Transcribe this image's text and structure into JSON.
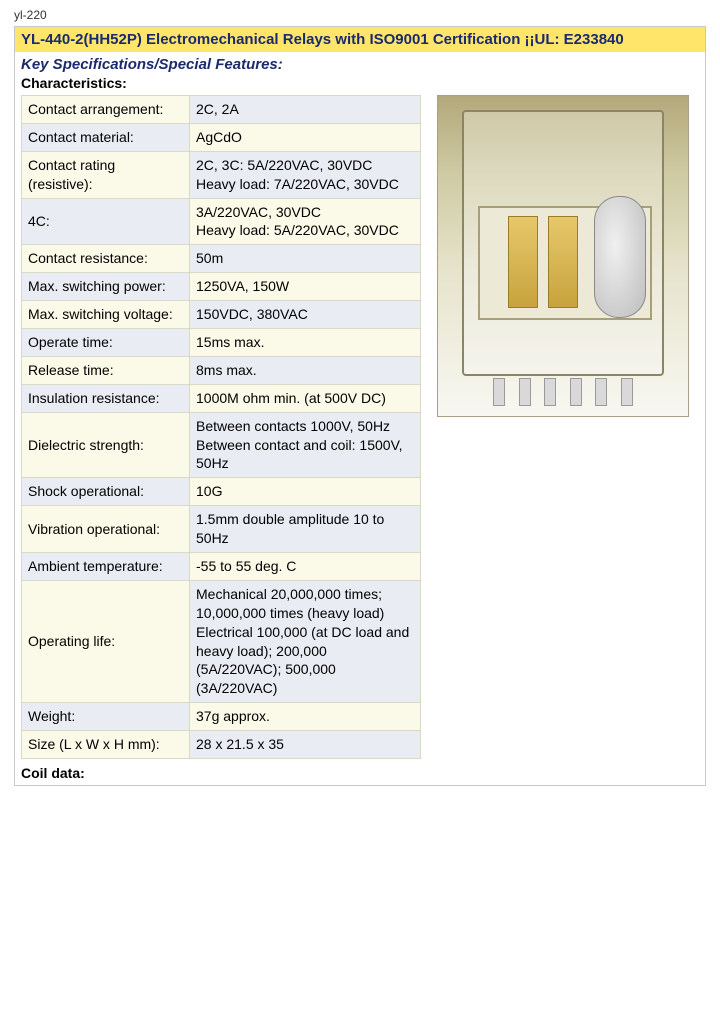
{
  "colors": {
    "heading_bg": "#ffe66b",
    "heading_text": "#1a2a6c",
    "subheading_text": "#1a2a6c",
    "border": "#c8c8c8",
    "table_border": "#d9d9c8",
    "row_odd_label": "#fbfae8",
    "row_odd_value": "#e9edf3",
    "row_even_label": "#e9edf3",
    "row_even_value": "#fbfae8"
  },
  "header_small": "yl-220",
  "title": "YL-440-2(HH52P) Electromechanical Relays with ISO9001 Certification ¡¡UL: E233840",
  "key_specs_label": "Key Specifications/Special Features:",
  "characteristics_label": "Characteristics:",
  "coil_data_label": "Coil data:",
  "specs": [
    {
      "label": "Contact arrangement:",
      "value": "2C, 2A"
    },
    {
      "label": "Contact material:",
      "value": "AgCdO"
    },
    {
      "label": "Contact rating (resistive):",
      "value": "2C, 3C: 5A/220VAC, 30VDC\nHeavy load: 7A/220VAC, 30VDC"
    },
    {
      "label": "4C:",
      "value": "3A/220VAC, 30VDC\nHeavy load: 5A/220VAC, 30VDC"
    },
    {
      "label": "Contact resistance:",
      "value": "50m"
    },
    {
      "label": "Max. switching power:",
      "value": "1250VA, 150W"
    },
    {
      "label": "Max. switching voltage:",
      "value": "150VDC, 380VAC"
    },
    {
      "label": "Operate time:",
      "value": "15ms max."
    },
    {
      "label": "Release time:",
      "value": "8ms max."
    },
    {
      "label": "Insulation resistance:",
      "value": "1000M ohm min. (at 500V DC)"
    },
    {
      "label": "Dielectric strength:",
      "value": "Between contacts 1000V, 50Hz\nBetween contact and coil: 1500V, 50Hz"
    },
    {
      "label": "Shock operational:",
      "value": "10G"
    },
    {
      "label": "Vibration operational:",
      "value": "1.5mm double amplitude 10 to 50Hz"
    },
    {
      "label": "Ambient temperature:",
      "value": "-55 to 55 deg. C"
    },
    {
      "label": "Operating life:",
      "value": "Mechanical 20,000,000 times; 10,000,000 times (heavy load)\nElectrical 100,000 (at DC load and heavy load); 200,000 (5A/220VAC); 500,000 (3A/220VAC)"
    },
    {
      "label": "Weight:",
      "value": "37g approx."
    },
    {
      "label": "Size (L x W x H mm):",
      "value": "28 x 21.5 x 35"
    }
  ]
}
